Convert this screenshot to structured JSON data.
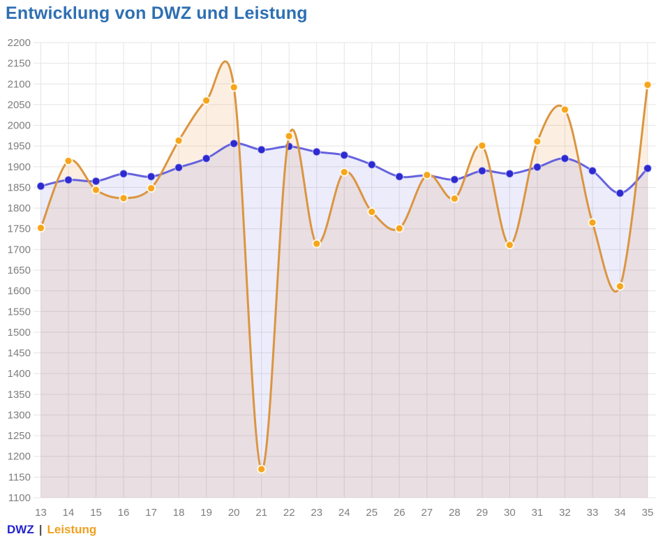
{
  "title": "Entwicklung von DWZ und Leistung",
  "legend": {
    "dwz": "DWZ",
    "separator": "|",
    "leistung": "Leistung"
  },
  "colors": {
    "title": "#2e6fb2",
    "axis_label": "#7e7e7e",
    "gridline": "#e4e4e4",
    "dwz_line": "#6562de",
    "dwz_dot": "#2d2ad0",
    "dwz_fill": "rgba(105,105,225,0.13)",
    "leistung_line": "#db9540",
    "leistung_dot": "#f7a51b",
    "leistung_fill": "rgba(235,150,60,0.15)",
    "legend_dwz": "#2323cd",
    "legend_leistung": "#f0a01e"
  },
  "chart_data": {
    "type": "line",
    "title": "Entwicklung von DWZ und Leistung",
    "x": [
      13,
      14,
      15,
      16,
      17,
      18,
      19,
      20,
      21,
      22,
      23,
      24,
      25,
      26,
      27,
      28,
      29,
      30,
      31,
      32,
      33,
      34,
      35
    ],
    "series": [
      {
        "name": "DWZ",
        "values": [
          1853,
          1868,
          1865,
          1883,
          1876,
          1898,
          1920,
          1956,
          1941,
          1949,
          1936,
          1928,
          1905,
          1876,
          1879,
          1869,
          1890,
          1883,
          1899,
          1920,
          1890,
          1836,
          1896
        ]
      },
      {
        "name": "Leistung",
        "values": [
          1752,
          1914,
          1844,
          1824,
          1848,
          1963,
          2060,
          2092,
          1169,
          1974,
          1714,
          1887,
          1791,
          1751,
          1880,
          1823,
          1951,
          1711,
          1961,
          2038,
          1765,
          1611,
          2098
        ]
      }
    ],
    "ylim": [
      1100,
      2200
    ],
    "ytick_step": 50,
    "grid": true,
    "smooth": true,
    "legend_position": "bottom-left"
  }
}
